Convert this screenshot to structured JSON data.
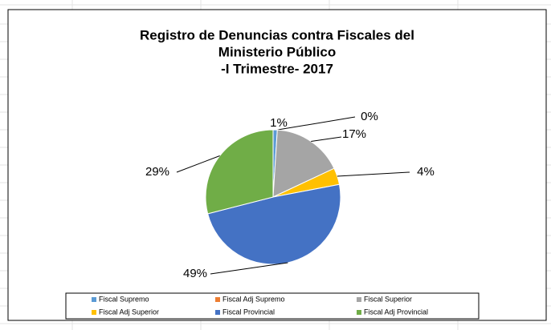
{
  "chart_data": {
    "type": "pie",
    "title": [
      "Registro de Denuncias contra Fiscales del",
      "Ministerio Público",
      "-I Trimestre- 2017"
    ],
    "categories": [
      "Fiscal Supremo",
      "Fiscal Adj Supremo",
      "Fiscal Superior",
      "Fiscal Adj Superior",
      "Fiscal Provincial",
      "Fiscal Adj Provincial"
    ],
    "values": [
      1,
      0,
      17,
      4,
      49,
      29
    ],
    "value_labels": [
      "1%",
      "0%",
      "17%",
      "4%",
      "49%",
      "29%"
    ],
    "colors": [
      "#5b9bd5",
      "#ed7d31",
      "#a5a5a5",
      "#ffc000",
      "#4472c4",
      "#70ad47"
    ],
    "legend": "bottom"
  }
}
